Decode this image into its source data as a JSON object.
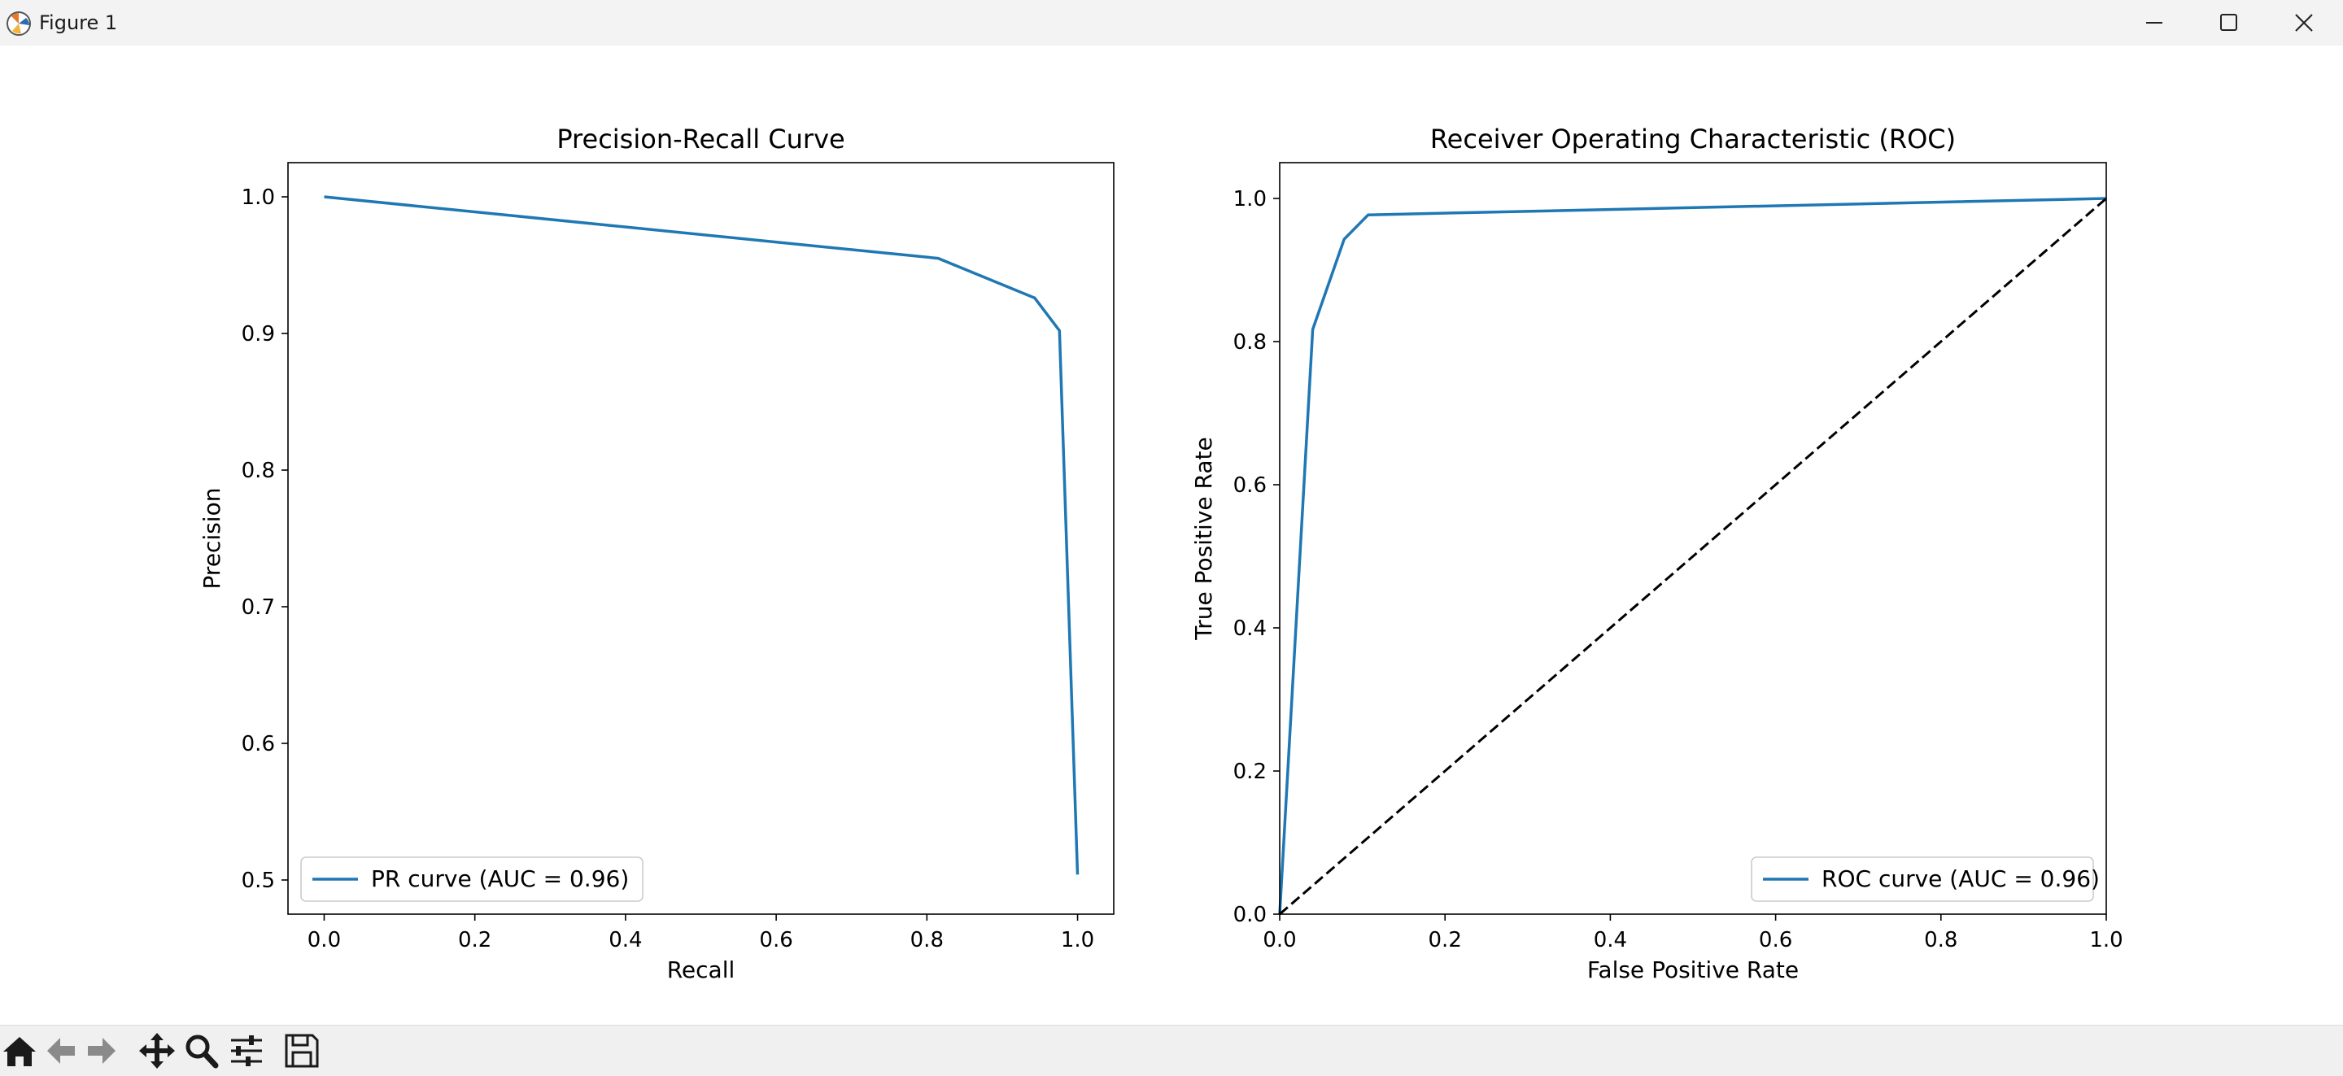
{
  "window": {
    "title": "Figure 1",
    "icons": [
      "matplotlib-logo-icon",
      "minimize-icon",
      "maximize-icon",
      "close-icon"
    ]
  },
  "toolbar": {
    "tools": [
      "home-icon",
      "back-arrow-icon",
      "forward-arrow-icon",
      "pan-icon",
      "zoom-icon",
      "configure-subplots-icon",
      "save-icon"
    ]
  },
  "colors": {
    "series": "#1f77b4",
    "diagonal": "#000000",
    "window_bg": "#f3f3f3",
    "toolbar_bg": "#f0f0f0"
  },
  "chart_data": [
    {
      "type": "line",
      "title": "Precision-Recall Curve",
      "xlabel": "Recall",
      "ylabel": "Precision",
      "xlim": [
        -0.048,
        1.048
      ],
      "ylim": [
        0.475,
        1.025
      ],
      "xticks": [
        0.0,
        0.2,
        0.4,
        0.6,
        0.8,
        1.0
      ],
      "xtick_labels": [
        "0.0",
        "0.2",
        "0.4",
        "0.6",
        "0.8",
        "1.0"
      ],
      "yticks": [
        0.5,
        0.6,
        0.7,
        0.8,
        0.9,
        1.0
      ],
      "ytick_labels": [
        "0.5",
        "0.6",
        "0.7",
        "0.8",
        "0.9",
        "1.0"
      ],
      "grid": false,
      "legend": "lower-left",
      "series": [
        {
          "name": "PR curve (AUC = 0.96)",
          "color": "#1f77b4",
          "style": "solid",
          "x": [
            0.0,
            0.815,
            0.943,
            0.976,
            1.0
          ],
          "y": [
            1.0,
            0.955,
            0.926,
            0.902,
            0.504
          ]
        }
      ]
    },
    {
      "type": "line",
      "title": "Receiver Operating Characteristic (ROC)",
      "xlabel": "False Positive Rate",
      "ylabel": "True Positive Rate",
      "xlim": [
        0.0,
        1.0
      ],
      "ylim": [
        0.0,
        1.05
      ],
      "xticks": [
        0.0,
        0.2,
        0.4,
        0.6,
        0.8,
        1.0
      ],
      "xtick_labels": [
        "0.0",
        "0.2",
        "0.4",
        "0.6",
        "0.8",
        "1.0"
      ],
      "yticks": [
        0.0,
        0.2,
        0.4,
        0.6,
        0.8,
        1.0
      ],
      "ytick_labels": [
        "0.0",
        "0.2",
        "0.4",
        "0.6",
        "0.8",
        "1.0"
      ],
      "grid": false,
      "legend": "lower-right",
      "series": [
        {
          "name": "ROC curve (AUC = 0.96)",
          "color": "#1f77b4",
          "style": "solid",
          "x": [
            0.0,
            0.04,
            0.078,
            0.107,
            1.0
          ],
          "y": [
            0.0,
            0.817,
            0.943,
            0.977,
            1.0
          ]
        },
        {
          "color": "#000000",
          "style": "dashed",
          "x": [
            0.0,
            1.0
          ],
          "y": [
            0.0,
            1.0
          ]
        }
      ]
    }
  ]
}
